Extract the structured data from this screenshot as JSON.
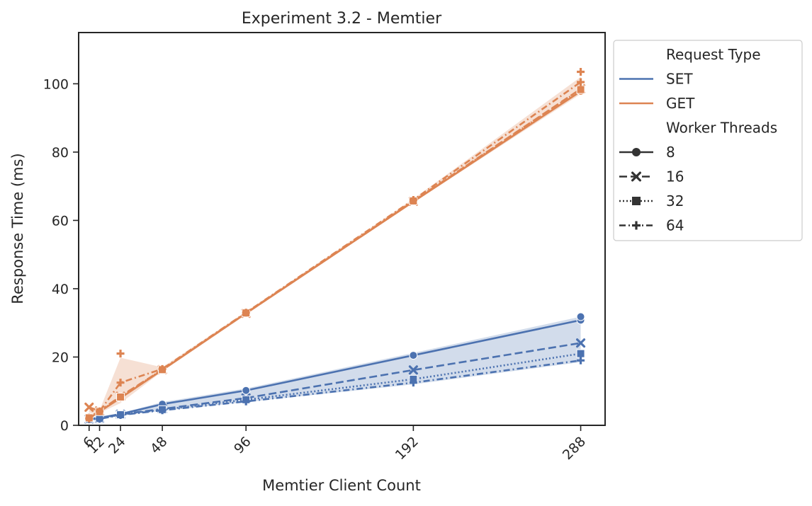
{
  "chart_data": {
    "type": "line",
    "title": "Experiment 3.2 - Memtier",
    "xlabel": "Memtier Client Count",
    "ylabel": "Response Time (ms)",
    "x": [
      6,
      12,
      24,
      48,
      96,
      192,
      288
    ],
    "xticks": [
      "6",
      "12",
      "24",
      "48",
      "96",
      "192",
      "288"
    ],
    "yticks": [
      "0",
      "20",
      "40",
      "60",
      "80",
      "100"
    ],
    "xlim": [
      0,
      302
    ],
    "ylim": [
      0,
      115
    ],
    "grid": false,
    "legend_position": "outside-top-right",
    "legend": {
      "hue_title": "Request Type",
      "style_title": "Worker Threads",
      "hue_entries": [
        {
          "label": "SET",
          "color": "#4c72b0"
        },
        {
          "label": "GET",
          "color": "#dd8452"
        }
      ],
      "style_entries": [
        {
          "label": "8",
          "dash": "solid",
          "marker": "circle"
        },
        {
          "label": "16",
          "dash": "dashed",
          "marker": "x"
        },
        {
          "label": "32",
          "dash": "dotted",
          "marker": "square"
        },
        {
          "label": "64",
          "dash": "dashdot",
          "marker": "plus"
        }
      ]
    },
    "series": [
      {
        "request_type": "SET",
        "worker_threads": "8",
        "color": "#4c72b0",
        "dash": "solid",
        "marker": "circle",
        "values": [
          1.9,
          2.2,
          3.3,
          6.2,
          10.2,
          20.5,
          30.8
        ]
      },
      {
        "request_type": "SET",
        "worker_threads": "16",
        "color": "#4c72b0",
        "dash": "dashed",
        "marker": "x",
        "values": [
          1.8,
          2.0,
          3.2,
          4.8,
          8.0,
          16.2,
          24.1
        ]
      },
      {
        "request_type": "SET",
        "worker_threads": "32",
        "color": "#4c72b0",
        "dash": "dotted",
        "marker": "square",
        "values": [
          1.8,
          2.0,
          3.1,
          4.6,
          7.5,
          13.5,
          21.0
        ]
      },
      {
        "request_type": "SET",
        "worker_threads": "64",
        "color": "#4c72b0",
        "dash": "dashdot",
        "marker": "plus",
        "values": [
          1.8,
          1.9,
          3.0,
          4.4,
          7.0,
          12.5,
          19.0
        ]
      },
      {
        "request_type": "GET",
        "worker_threads": "8",
        "color": "#dd8452",
        "dash": "solid",
        "marker": "circle",
        "values": [
          2.5,
          4.0,
          8.0,
          16.2,
          32.8,
          65.5,
          97.8
        ]
      },
      {
        "request_type": "GET",
        "worker_threads": "16",
        "color": "#dd8452",
        "dash": "dashed",
        "marker": "x",
        "values": [
          5.3,
          4.2,
          8.5,
          16.3,
          32.8,
          65.6,
          98.5
        ]
      },
      {
        "request_type": "GET",
        "worker_threads": "32",
        "color": "#dd8452",
        "dash": "dotted",
        "marker": "square",
        "values": [
          2.2,
          4.0,
          8.3,
          16.3,
          32.9,
          65.7,
          98.3
        ]
      },
      {
        "request_type": "GET",
        "worker_threads": "64",
        "color": "#dd8452",
        "dash": "dashdot",
        "marker": "plus",
        "values": [
          2.0,
          4.1,
          12.5,
          16.5,
          33.0,
          66.0,
          100.5
        ]
      }
    ],
    "extra_points": [
      {
        "request_type": "GET",
        "worker_threads": "64",
        "x": 24,
        "y": 21.0
      },
      {
        "request_type": "GET",
        "worker_threads": "64",
        "x": 288,
        "y": 103.5
      },
      {
        "request_type": "SET",
        "worker_threads": "8",
        "x": 288,
        "y": 31.8
      }
    ],
    "confidence_bands": [
      {
        "request_type": "SET",
        "color": "#4c72b0",
        "lower": [
          1.7,
          1.8,
          2.9,
          4.2,
          6.8,
          12.0,
          18.5
        ],
        "upper": [
          2.0,
          2.3,
          3.5,
          6.8,
          10.8,
          21.2,
          31.8
        ]
      },
      {
        "request_type": "GET",
        "color": "#dd8452",
        "lower": [
          1.8,
          3.6,
          6.5,
          15.8,
          32.4,
          65.2,
          97.0
        ],
        "upper": [
          5.5,
          4.4,
          19.8,
          17.0,
          33.3,
          66.3,
          102.0
        ]
      }
    ]
  }
}
